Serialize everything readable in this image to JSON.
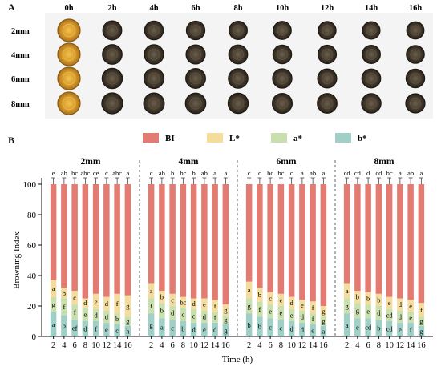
{
  "panel_a": {
    "label": "A",
    "time_labels": [
      "0h",
      "2h",
      "4h",
      "6h",
      "8h",
      "10h",
      "12h",
      "14h",
      "16h"
    ],
    "thickness_labels": [
      "2mm",
      "4mm",
      "6mm",
      "8mm"
    ]
  },
  "panel_b": {
    "label": "B"
  },
  "chart_data": {
    "type": "bar",
    "stacked": true,
    "ylabel": "Browning Index",
    "xlabel": "Time (h)",
    "ylim": [
      0,
      100
    ],
    "yticks": [
      0,
      20,
      40,
      60,
      80,
      100
    ],
    "legend": [
      "BI",
      "L*",
      "a*",
      "b*"
    ],
    "legend_position": "top",
    "colors": {
      "BI": "#e47b72",
      "L*": "#f4dc9c",
      "a*": "#cadfae",
      "b*": "#9fcfc6"
    },
    "categories": [
      "2",
      "4",
      "6",
      "8",
      "10",
      "12",
      "14",
      "16"
    ],
    "groups": [
      {
        "name": "2mm",
        "series": [
          {
            "name": "b*",
            "values": [
              16,
              14,
              11,
              10,
              10,
              9,
              8,
              7
            ]
          },
          {
            "name": "a*",
            "values": [
              10,
              11,
              10,
              9,
              8,
              8,
              7,
              6
            ]
          },
          {
            "name": "L*",
            "values": [
              11,
              7,
              9,
              6,
              10,
              9,
              13,
              14
            ]
          },
          {
            "name": "BI",
            "values": [
              63,
              68,
              70,
              75,
              72,
              74,
              72,
              73
            ]
          }
        ],
        "letters": {
          "b*": [
            "a",
            "b",
            "ef",
            "d",
            "f",
            "e",
            "c",
            "h"
          ],
          "a*": [
            "g",
            "f",
            "f",
            "e",
            "d",
            "d",
            "b",
            "g"
          ],
          "L*": [
            "a",
            "b",
            "c",
            "d",
            "e",
            "d",
            "f",
            "g"
          ],
          "BI": [
            "e",
            "ab",
            "bc",
            "abc",
            "ce",
            "c",
            "abc",
            "a"
          ]
        }
      },
      {
        "name": "4mm",
        "series": [
          {
            "name": "b*",
            "values": [
              15,
              12,
              11,
              10,
              9,
              9,
              9,
              8
            ]
          },
          {
            "name": "a*",
            "values": [
              10,
              10,
              9,
              9,
              9,
              8,
              7,
              6
            ]
          },
          {
            "name": "L*",
            "values": [
              10,
              8,
              8,
              7,
              7,
              8,
              8,
              7
            ]
          },
          {
            "name": "BI",
            "values": [
              65,
              70,
              72,
              74,
              75,
              75,
              76,
              79
            ]
          }
        ],
        "letters": {
          "b*": [
            "g",
            "a",
            "c",
            "b",
            "d",
            "e",
            "d",
            "g"
          ],
          "a*": [
            "f",
            "b",
            "d",
            "c",
            "c",
            "d",
            "f",
            "g"
          ],
          "L*": [
            "a",
            "b",
            "c",
            "bc",
            "d",
            "e",
            "f",
            "g"
          ],
          "BI": [
            "c",
            "ab",
            "b",
            "bc",
            "b",
            "ab",
            "a",
            "a"
          ]
        }
      },
      {
        "name": "6mm",
        "series": [
          {
            "name": "b*",
            "values": [
              15,
              13,
              12,
              11,
              10,
              9,
              8,
              7
            ]
          },
          {
            "name": "a*",
            "values": [
              10,
              10,
              9,
              9,
              8,
              8,
              7,
              6
            ]
          },
          {
            "name": "L*",
            "values": [
              11,
              9,
              8,
              8,
              8,
              7,
              8,
              7
            ]
          },
          {
            "name": "BI",
            "values": [
              64,
              68,
              71,
              72,
              74,
              76,
              77,
              80
            ]
          }
        ],
        "letters": {
          "b*": [
            "b",
            "b",
            "c",
            "c",
            "d",
            "d",
            "e",
            "a"
          ],
          "a*": [
            "g",
            "f",
            "e",
            "e",
            "e",
            "d",
            "f",
            "g"
          ],
          "L*": [
            "a",
            "b",
            "c",
            "e",
            "d",
            "e",
            "f",
            "g"
          ],
          "BI": [
            "c",
            "c",
            "bc",
            "bc",
            "c",
            "a",
            "ab",
            "a"
          ]
        }
      },
      {
        "name": "8mm",
        "series": [
          {
            "name": "b*",
            "values": [
              15,
              12,
              12,
              11,
              10,
              9,
              9,
              7
            ]
          },
          {
            "name": "a*",
            "values": [
              10,
              10,
              9,
              9,
              8,
              8,
              7,
              6
            ]
          },
          {
            "name": "L*",
            "values": [
              10,
              8,
              8,
              8,
              8,
              8,
              8,
              9
            ]
          },
          {
            "name": "BI",
            "values": [
              65,
              70,
              71,
              72,
              74,
              75,
              76,
              78
            ]
          }
        ],
        "letters": {
          "b*": [
            "a",
            "e",
            "cd",
            "b",
            "cd",
            "e",
            "f",
            "g"
          ],
          "a*": [
            "g",
            "g",
            "e",
            "d",
            "cd",
            "d",
            "e",
            "g"
          ],
          "L*": [
            "a",
            "b",
            "b",
            "b",
            "e",
            "d",
            "e",
            "f"
          ],
          "BI": [
            "cd",
            "cd",
            "d",
            "cd",
            "bc",
            "a",
            "ab",
            "a"
          ]
        }
      }
    ]
  }
}
